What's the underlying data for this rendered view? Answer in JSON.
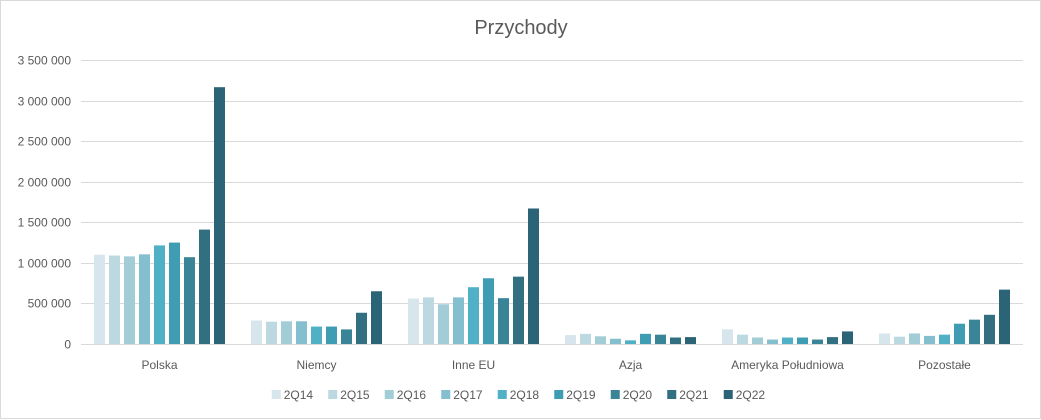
{
  "chart_data": {
    "type": "bar",
    "title": "Przychody",
    "xlabel": "",
    "ylabel": "",
    "ylim": [
      0,
      3500000
    ],
    "yticks": [
      0,
      500000,
      1000000,
      1500000,
      2000000,
      2500000,
      3000000,
      3500000
    ],
    "ytick_labels": [
      "0",
      "500 000",
      "1 000 000",
      "1 500 000",
      "2 000 000",
      "2 500 000",
      "3 000 000",
      "3 500 000"
    ],
    "grid": true,
    "legend_position": "bottom",
    "categories": [
      "Polska",
      "Niemcy",
      "Inne EU",
      "Azja",
      "Ameryka Południowa",
      "Pozostałe"
    ],
    "series": [
      {
        "name": "2Q14",
        "color": "#d6e6ec",
        "values": [
          1100000,
          290000,
          560000,
          110000,
          180000,
          130000
        ]
      },
      {
        "name": "2Q15",
        "color": "#bcd9e1",
        "values": [
          1090000,
          275000,
          575000,
          125000,
          115000,
          90000
        ]
      },
      {
        "name": "2Q16",
        "color": "#a2cdd7",
        "values": [
          1080000,
          280000,
          490000,
          95000,
          80000,
          130000
        ]
      },
      {
        "name": "2Q17",
        "color": "#84bfcf",
        "values": [
          1105000,
          280000,
          575000,
          65000,
          55000,
          100000
        ]
      },
      {
        "name": "2Q18",
        "color": "#4fb0c6",
        "values": [
          1215000,
          215000,
          700000,
          45000,
          80000,
          115000
        ]
      },
      {
        "name": "2Q19",
        "color": "#3e9db3",
        "values": [
          1250000,
          215000,
          810000,
          125000,
          80000,
          250000
        ]
      },
      {
        "name": "2Q20",
        "color": "#398597",
        "values": [
          1070000,
          180000,
          565000,
          115000,
          55000,
          300000
        ]
      },
      {
        "name": "2Q21",
        "color": "#326f80",
        "values": [
          1410000,
          385000,
          830000,
          80000,
          85000,
          360000
        ]
      },
      {
        "name": "2Q22",
        "color": "#2a6476",
        "values": [
          3165000,
          650000,
          1670000,
          85000,
          155000,
          670000
        ]
      }
    ]
  }
}
